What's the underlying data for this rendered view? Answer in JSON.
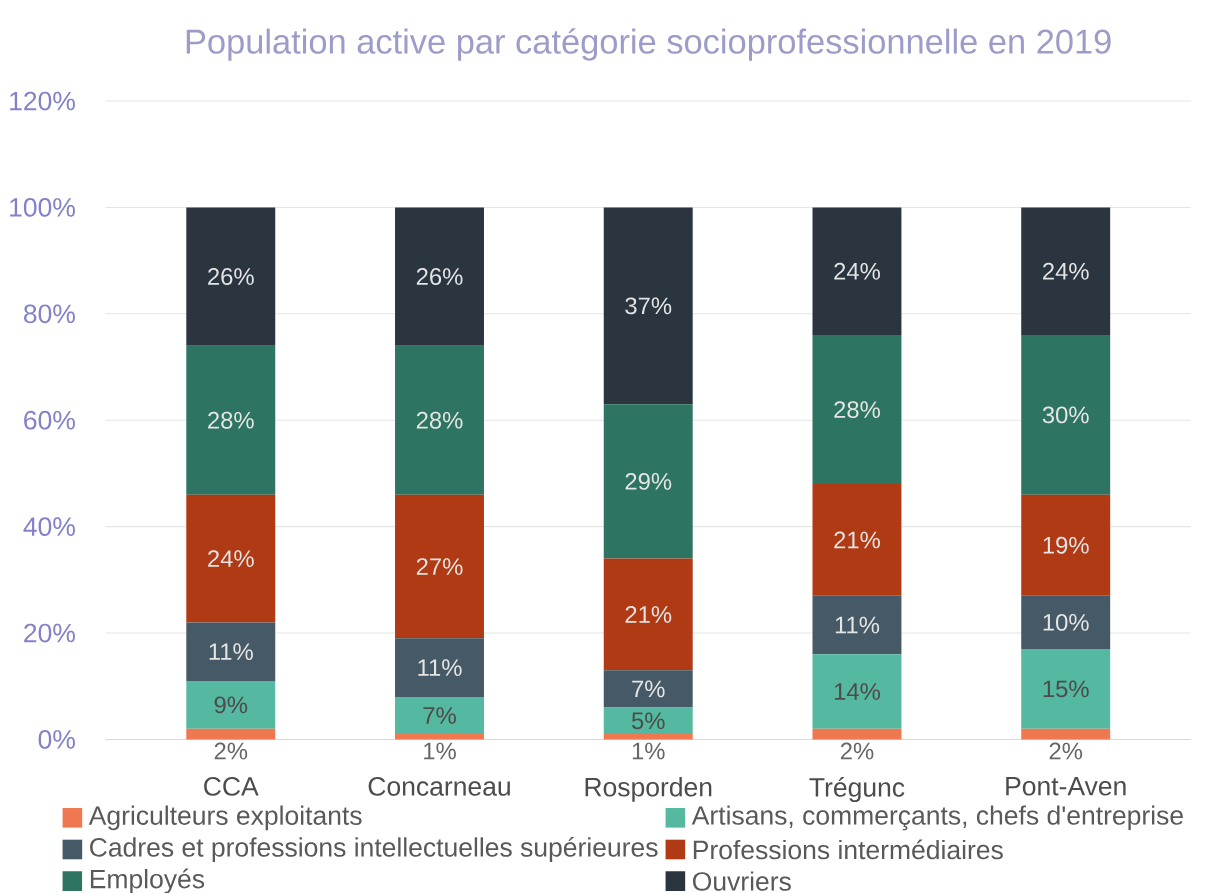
{
  "chart_data": {
    "type": "bar",
    "stacked": true,
    "title": "Population active par catégorie socioprofessionnelle en 2019",
    "categories": [
      "CCA",
      "Concarneau",
      "Rosporden",
      "Trégunc",
      "Pont-Aven"
    ],
    "series": [
      {
        "name": "Agriculteurs exploitants",
        "color": "#f07850",
        "values": [
          2,
          1,
          1,
          2,
          2
        ],
        "value_labels": [
          "2%",
          "1%",
          "1%",
          "2%",
          "2%"
        ]
      },
      {
        "name": "Artisans, commerçants, chefs d'entreprise",
        "color": "#55b8a0",
        "values": [
          9,
          7,
          5,
          14,
          15
        ],
        "value_labels": [
          "9%",
          "7%",
          "5%",
          "14%",
          "15%"
        ]
      },
      {
        "name": "Cadres et professions intellectuelles supérieures",
        "color": "#455a66",
        "values": [
          11,
          11,
          7,
          11,
          10
        ],
        "value_labels": [
          "11%",
          "11%",
          "7%",
          "11%",
          "10%"
        ]
      },
      {
        "name": "Professions intermédiaires",
        "color": "#b03a14",
        "values": [
          24,
          27,
          21,
          21,
          19
        ],
        "value_labels": [
          "24%",
          "27%",
          "21%",
          "21%",
          "19%"
        ]
      },
      {
        "name": "Employés",
        "color": "#2e7462",
        "values": [
          28,
          28,
          29,
          28,
          30
        ],
        "value_labels": [
          "28%",
          "28%",
          "29%",
          "28%",
          "30%"
        ]
      },
      {
        "name": "Ouvriers",
        "color": "#2a3540",
        "values": [
          26,
          26,
          37,
          24,
          24
        ],
        "value_labels": [
          "26%",
          "26%",
          "37%",
          "24%",
          "24%"
        ]
      }
    ],
    "ylim": [
      0,
      120
    ],
    "yticks": [
      {
        "value": 0,
        "label": "0%"
      },
      {
        "value": 20,
        "label": "20%"
      },
      {
        "value": 40,
        "label": "40%"
      },
      {
        "value": 60,
        "label": "60%"
      },
      {
        "value": 80,
        "label": "80%"
      },
      {
        "value": 100,
        "label": "100%"
      },
      {
        "value": 120,
        "label": "120%"
      }
    ],
    "grid": "y",
    "legend": "bottom"
  }
}
